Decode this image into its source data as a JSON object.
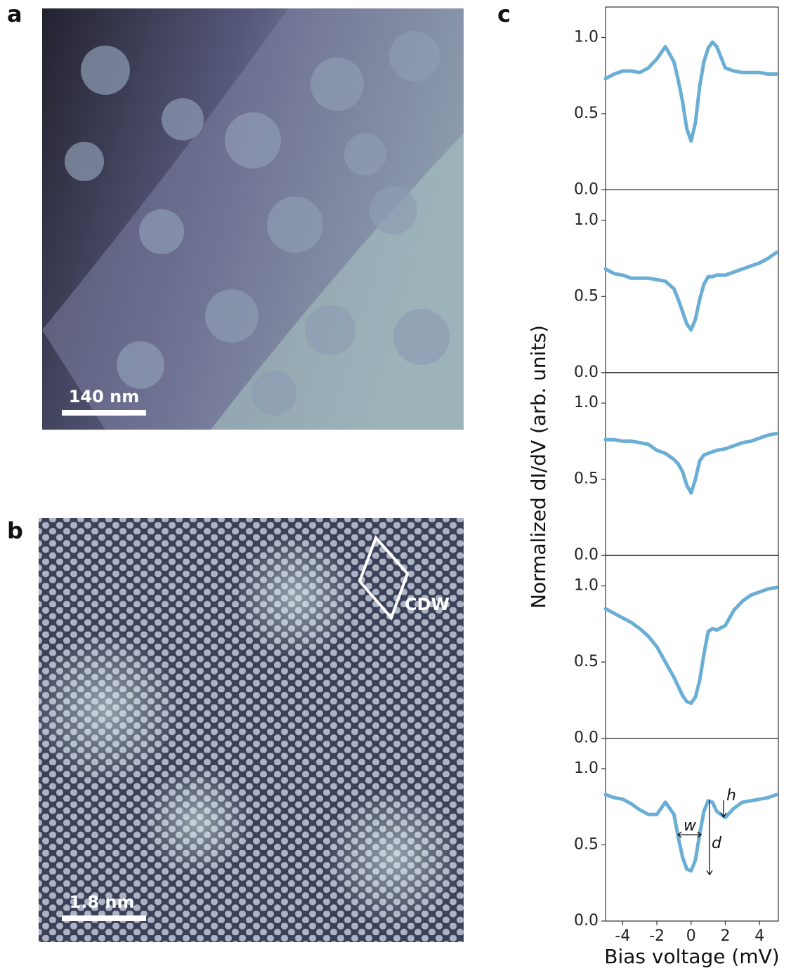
{
  "panel_labels": [
    "a",
    "b",
    "c"
  ],
  "image_a": {
    "scale_bar": "140 nm"
  },
  "image_b": {
    "scale_bar": "1.8 nm",
    "annotation": "CDW"
  },
  "chart_data": [
    {
      "type": "line",
      "color": "#6aaed6",
      "xlim": [
        -5,
        5.1
      ],
      "ylim": [
        0,
        1.2
      ],
      "yticks": [
        {
          "value": 0,
          "label": "0.0"
        },
        {
          "value": 0.5,
          "label": "0.5"
        },
        {
          "value": 1,
          "label": "1.0"
        }
      ],
      "x": [
        -5,
        -4.5,
        -4,
        -3.5,
        -3,
        -2.5,
        -2,
        -1.5,
        -1,
        -0.75,
        -0.5,
        -0.25,
        0,
        0.25,
        0.5,
        0.75,
        1,
        1.25,
        1.5,
        2,
        2.5,
        3,
        3.5,
        4,
        4.5,
        5
      ],
      "values": [
        0.73,
        0.76,
        0.78,
        0.78,
        0.77,
        0.8,
        0.86,
        0.94,
        0.84,
        0.72,
        0.58,
        0.4,
        0.32,
        0.44,
        0.68,
        0.84,
        0.93,
        0.97,
        0.94,
        0.8,
        0.78,
        0.77,
        0.77,
        0.77,
        0.76,
        0.76
      ]
    },
    {
      "type": "line",
      "color": "#6aaed6",
      "xlim": [
        -5,
        5.1
      ],
      "ylim": [
        0,
        1.2
      ],
      "yticks": [
        {
          "value": 0,
          "label": "0.0"
        },
        {
          "value": 0.5,
          "label": "0.5"
        },
        {
          "value": 1,
          "label": "1.0"
        }
      ],
      "x": [
        -5,
        -4.5,
        -4,
        -3.5,
        -3,
        -2.5,
        -2,
        -1.5,
        -1,
        -0.75,
        -0.5,
        -0.25,
        0,
        0.25,
        0.5,
        0.75,
        1,
        1.25,
        1.5,
        2,
        2.5,
        3,
        3.5,
        4,
        4.5,
        5
      ],
      "values": [
        0.68,
        0.65,
        0.64,
        0.62,
        0.62,
        0.62,
        0.61,
        0.6,
        0.55,
        0.48,
        0.4,
        0.32,
        0.28,
        0.35,
        0.48,
        0.58,
        0.63,
        0.63,
        0.64,
        0.64,
        0.66,
        0.68,
        0.7,
        0.72,
        0.75,
        0.79
      ]
    },
    {
      "type": "line",
      "color": "#6aaed6",
      "xlim": [
        -5,
        5.1
      ],
      "ylim": [
        0,
        1.2
      ],
      "y_label": "Normalized dI/dV (arb. units)",
      "yticks": [
        {
          "value": 0,
          "label": "0.0"
        },
        {
          "value": 0.5,
          "label": "0.5"
        },
        {
          "value": 1,
          "label": "1.0"
        }
      ],
      "x": [
        -5,
        -4.5,
        -4,
        -3.5,
        -3,
        -2.5,
        -2,
        -1.5,
        -1,
        -0.75,
        -0.5,
        -0.25,
        0,
        0.25,
        0.5,
        0.75,
        1,
        1.25,
        1.5,
        2,
        2.5,
        3,
        3.5,
        4,
        4.5,
        5
      ],
      "values": [
        0.76,
        0.76,
        0.75,
        0.75,
        0.74,
        0.73,
        0.69,
        0.67,
        0.63,
        0.6,
        0.55,
        0.46,
        0.41,
        0.5,
        0.62,
        0.66,
        0.67,
        0.68,
        0.69,
        0.7,
        0.72,
        0.74,
        0.75,
        0.77,
        0.79,
        0.8
      ]
    },
    {
      "type": "line",
      "color": "#6aaed6",
      "xlim": [
        -5,
        5.1
      ],
      "ylim": [
        0,
        1.2
      ],
      "yticks": [
        {
          "value": 0,
          "label": "0.0"
        },
        {
          "value": 0.5,
          "label": "0.5"
        },
        {
          "value": 1,
          "label": "1.0"
        }
      ],
      "x": [
        -5,
        -4.5,
        -4,
        -3.5,
        -3,
        -2.5,
        -2,
        -1.5,
        -1,
        -0.75,
        -0.5,
        -0.25,
        0,
        0.25,
        0.5,
        0.75,
        1,
        1.25,
        1.5,
        2,
        2.5,
        3,
        3.5,
        4,
        4.5,
        5
      ],
      "values": [
        0.85,
        0.82,
        0.79,
        0.76,
        0.72,
        0.67,
        0.6,
        0.5,
        0.4,
        0.34,
        0.28,
        0.24,
        0.23,
        0.27,
        0.38,
        0.55,
        0.7,
        0.72,
        0.71,
        0.74,
        0.84,
        0.9,
        0.94,
        0.96,
        0.98,
        0.99
      ]
    },
    {
      "type": "line",
      "color": "#6aaed6",
      "xlim": [
        -5,
        5.1
      ],
      "ylim": [
        0,
        1.2
      ],
      "x_label": "Bias voltage (mV)",
      "annotations": [
        "w",
        "h",
        "d"
      ],
      "xticks": [
        -4,
        -2,
        0,
        2,
        4
      ],
      "yticks": [
        {
          "value": 0,
          "label": "0.0"
        },
        {
          "value": 0.5,
          "label": "0.5"
        },
        {
          "value": 1,
          "label": "1.0"
        }
      ],
      "x": [
        -5,
        -4.5,
        -4,
        -3.5,
        -3,
        -2.5,
        -2,
        -1.5,
        -1,
        -0.75,
        -0.5,
        -0.25,
        0,
        0.25,
        0.5,
        0.75,
        1,
        1.25,
        1.5,
        2,
        2.5,
        3,
        3.5,
        4,
        4.5,
        5
      ],
      "values": [
        0.83,
        0.81,
        0.8,
        0.77,
        0.73,
        0.7,
        0.7,
        0.78,
        0.7,
        0.55,
        0.42,
        0.34,
        0.33,
        0.4,
        0.57,
        0.72,
        0.79,
        0.78,
        0.72,
        0.68,
        0.74,
        0.78,
        0.79,
        0.8,
        0.81,
        0.83
      ]
    }
  ]
}
